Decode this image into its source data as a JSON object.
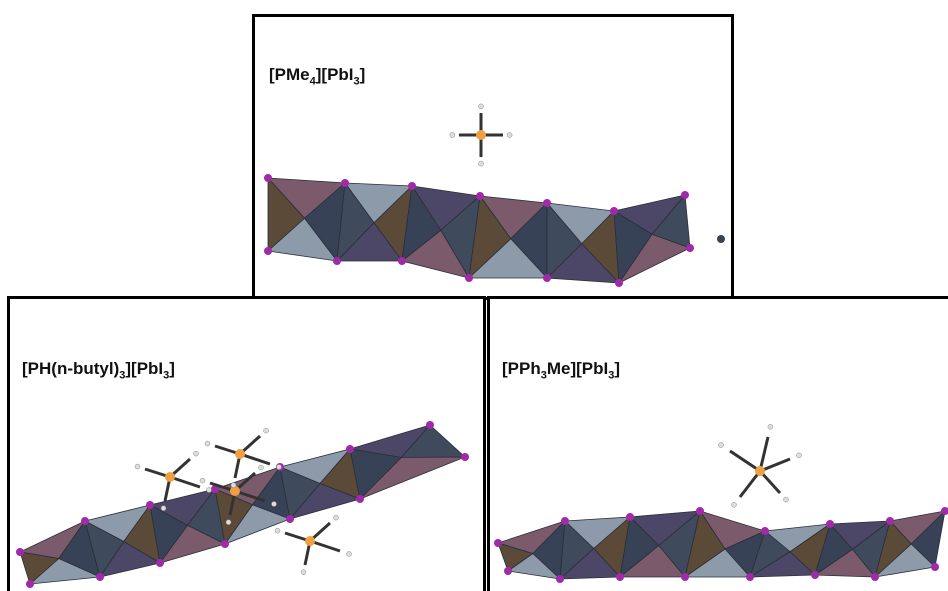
{
  "panels": [
    {
      "label": [
        "[PMe",
        "4",
        "][PbI",
        "3",
        "]"
      ]
    },
    {
      "label": [
        "[PH(n-butyl)",
        "3",
        "][PbI",
        "3",
        "]"
      ]
    },
    {
      "label": [
        "[PPh",
        "3",
        "Me][PbI",
        "3",
        "]"
      ]
    }
  ]
}
